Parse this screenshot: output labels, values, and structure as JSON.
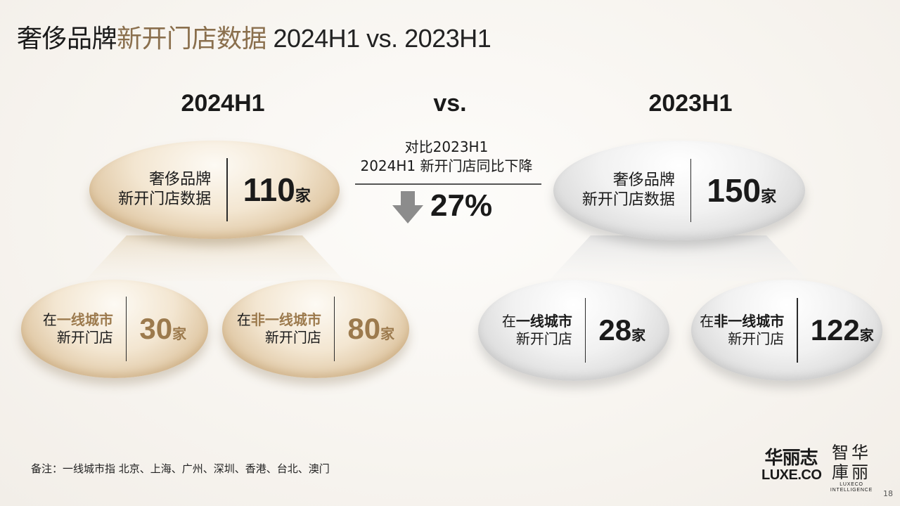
{
  "title": {
    "part1": "奢侈品牌",
    "part2": "新开门店数据",
    "part3": " 2024H1 vs. 2023H1"
  },
  "left": {
    "heading": "2024H1",
    "main": {
      "label_line1": "奢侈品牌",
      "label_line2": "新开门店数据",
      "value": "110",
      "unit": "家"
    },
    "tier1": {
      "prefix": "在",
      "highlight": "一线城市",
      "line2": "新开门店",
      "value": "30",
      "unit": "家"
    },
    "nontier1": {
      "prefix": "在",
      "highlight": "非一线城市",
      "line2": "新开门店",
      "value": "80",
      "unit": "家"
    }
  },
  "middle": {
    "heading": "vs.",
    "desc_line1": "对比2023H1",
    "desc_line2": "2024H1 新开门店同比下降",
    "change": "27%",
    "arrow_icon": "down-arrow-icon"
  },
  "right": {
    "heading": "2023H1",
    "main": {
      "label_line1": "奢侈品牌",
      "label_line2": "新开门店数据",
      "value": "150",
      "unit": "家"
    },
    "tier1": {
      "prefix": "在",
      "highlight": "一线城市",
      "line2": "新开门店",
      "value": "28",
      "unit": "家"
    },
    "nontier1": {
      "prefix": "在",
      "highlight": "非一线城市",
      "line2": "新开门店",
      "value": "122",
      "unit": "家"
    }
  },
  "note": "备注：一线城市指 北京、上海、广州、深圳、香港、台北、澳门",
  "logos": {
    "luxe_cn": "华丽志",
    "luxe_en": "LUXE.CO",
    "intel_cn": "智华庫丽",
    "intel_en_line1": "LUXECO",
    "intel_en_line2": "INTELLIGENCE"
  },
  "page_number": "18",
  "colors": {
    "gold": "#9c7a4d",
    "gold_oval": "#dcc29c",
    "silver_oval": "#d9d9d9",
    "arrow": "#8c8c8c"
  }
}
